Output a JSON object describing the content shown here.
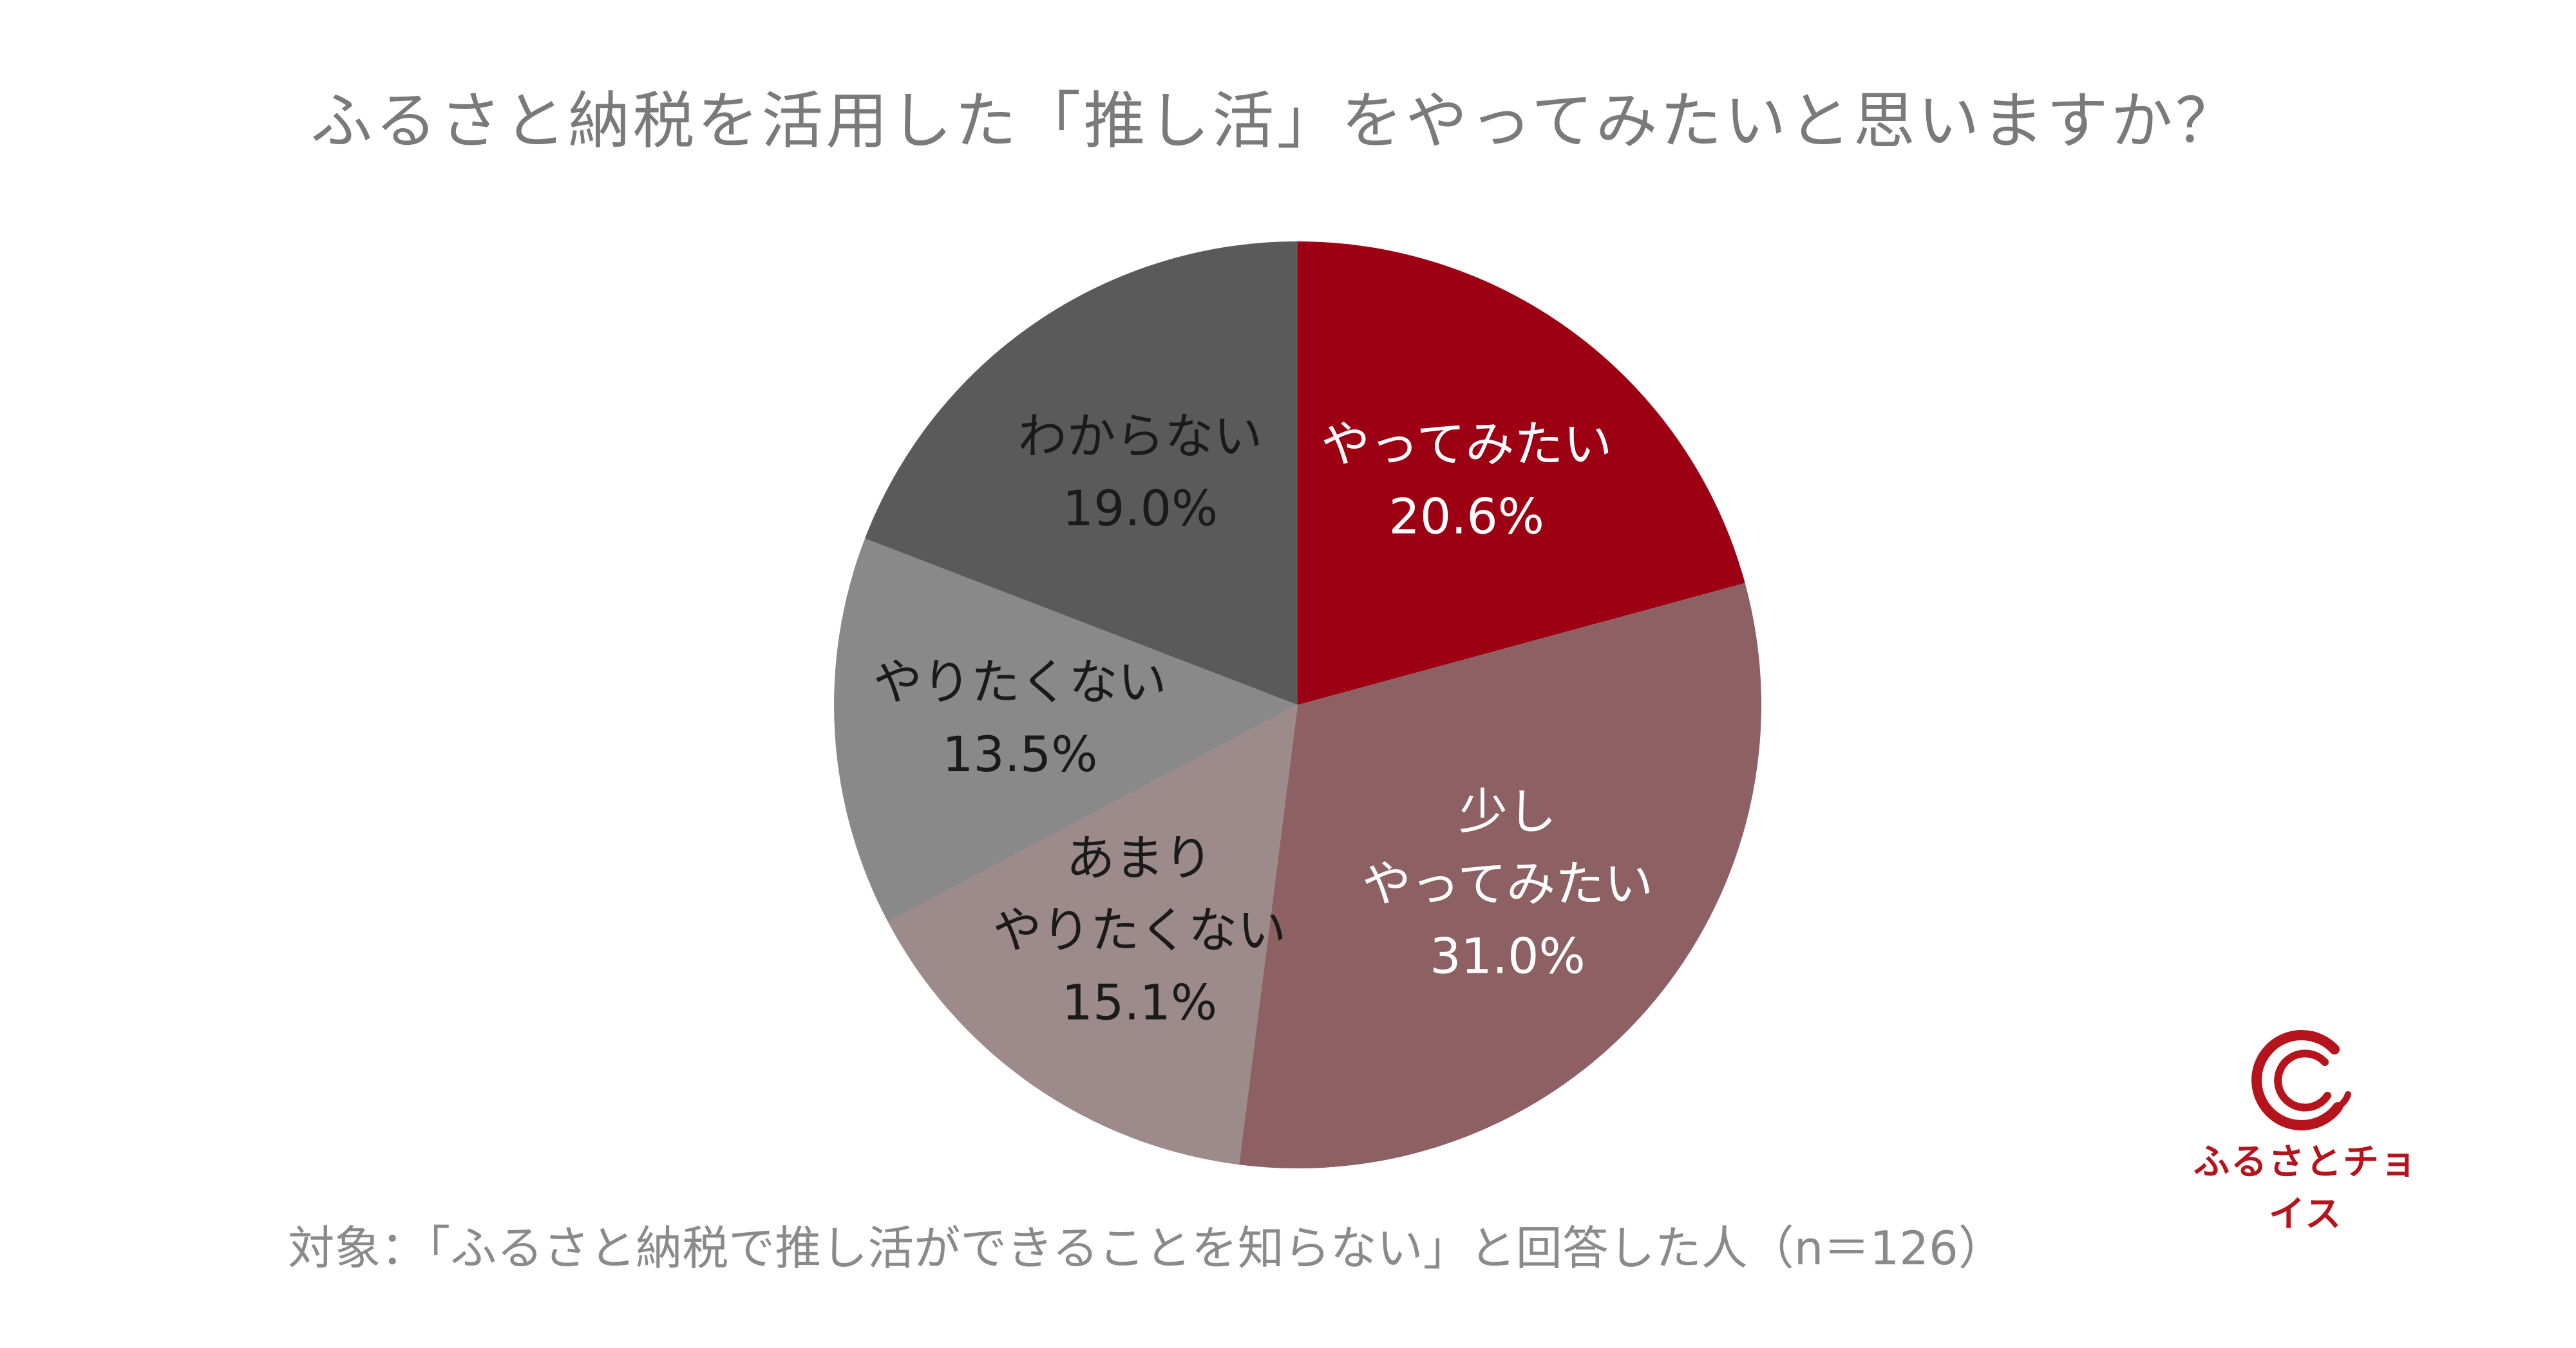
{
  "title": "ふるさと納税を活用した「推し活」をやってみたいと思いますか？",
  "footnote": "対象：「ふるさと納税で推し活ができることを知らない」と回答した人（n＝126）",
  "logo": {
    "text": "ふるさとチョイス"
  },
  "colors": {
    "やってみたい": "#9e0013",
    "少し やってみたい": "#8d6063",
    "あまり やりたくない": "#9d8a8b",
    "やりたくない": "#898989",
    "わからない": "#5a5a5a"
  },
  "chart_data": {
    "type": "pie",
    "slices": [
      {
        "lines": [
          "やってみたい"
        ],
        "pct_label": "20.6%",
        "value": 20.6,
        "color": "#9e0013",
        "text_color": "#ffffff"
      },
      {
        "lines": [
          "少し",
          "やってみたい"
        ],
        "pct_label": "31.0%",
        "value": 31.0,
        "color": "#8d6063",
        "text_color": "#ffffff"
      },
      {
        "lines": [
          "あまり",
          "やりたくない"
        ],
        "pct_label": "15.1%",
        "value": 15.1,
        "color": "#9d8a8b",
        "text_color": "#1a1a1a"
      },
      {
        "lines": [
          "やりたくない"
        ],
        "pct_label": "13.5%",
        "value": 13.5,
        "color": "#898989",
        "text_color": "#1a1a1a"
      },
      {
        "lines": [
          "わからない"
        ],
        "pct_label": "19.0%",
        "value": 19.0,
        "color": "#5a5a5a",
        "text_color": "#1a1a1a"
      }
    ],
    "start": "12 o'clock",
    "direction": "clockwise"
  }
}
